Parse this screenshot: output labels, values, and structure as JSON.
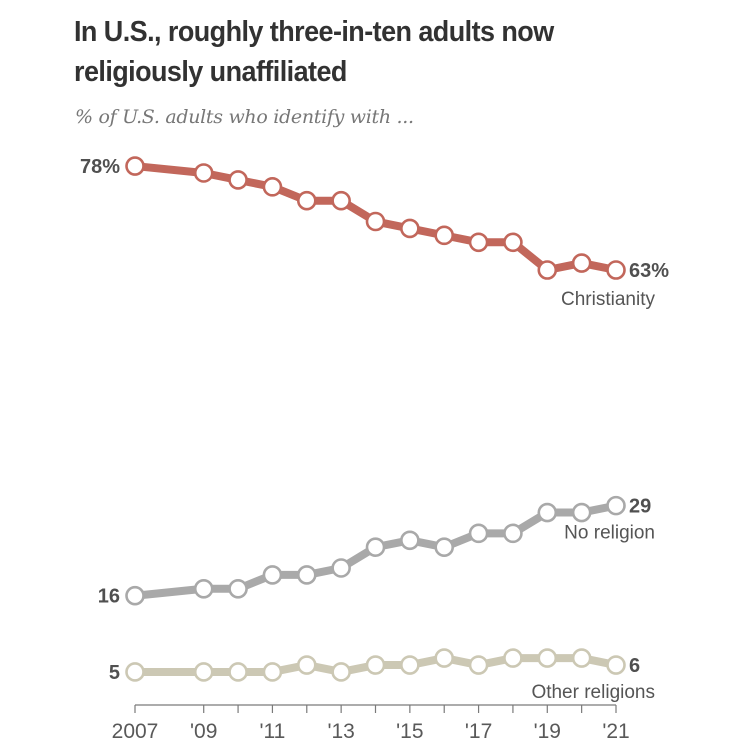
{
  "header": {
    "title": "In U.S., roughly three-in-ten adults now religiously unaffiliated",
    "subtitle": "% of U.S. adults who identify with ..."
  },
  "chart_data": {
    "type": "line",
    "title": "In U.S., roughly three-in-ten adults now religiously unaffiliated",
    "subtitle": "% of U.S. adults who identify with ...",
    "xlabel": "",
    "ylabel": "",
    "x": [
      2007,
      2009,
      2010,
      2011,
      2012,
      2013,
      2014,
      2015,
      2016,
      2017,
      2018,
      2019,
      2020,
      2021
    ],
    "x_ticks": [
      2007,
      2009,
      2010,
      2011,
      2012,
      2013,
      2014,
      2015,
      2016,
      2017,
      2018,
      2019,
      2020,
      2021
    ],
    "x_tick_labels": {
      "2007": "2007",
      "2009": "'09",
      "2011": "'11",
      "2013": "'13",
      "2015": "'15",
      "2017": "'17",
      "2019": "'19",
      "2021": "'21"
    },
    "xlim": [
      2007,
      2021
    ],
    "ylim": [
      0,
      78
    ],
    "grid": false,
    "legend": "inline-end-labels",
    "series": [
      {
        "name": "Christianity",
        "color": "#C2675B",
        "values": [
          78,
          77,
          76,
          75,
          73,
          73,
          70,
          69,
          68,
          67,
          67,
          63,
          64,
          63
        ],
        "start_label": "78%",
        "end_label": "63%"
      },
      {
        "name": "No religion",
        "color": "#A9A9A9",
        "values": [
          16,
          17,
          17,
          19,
          19,
          20,
          23,
          24,
          23,
          25,
          25,
          28,
          28,
          29
        ],
        "start_label": "16",
        "end_label": "29"
      },
      {
        "name": "Other religions",
        "color": "#CCC8B4",
        "values": [
          5,
          5,
          5,
          5,
          6,
          5,
          6,
          6,
          7,
          6,
          7,
          7,
          7,
          6
        ],
        "start_label": "5",
        "end_label": "6"
      }
    ]
  }
}
